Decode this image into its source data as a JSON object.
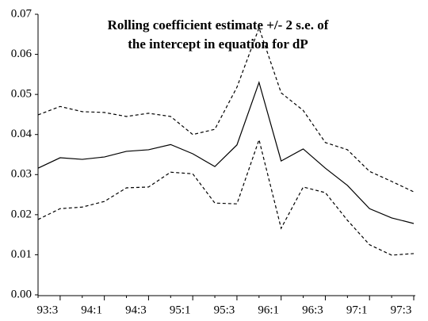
{
  "chart_data": {
    "type": "line",
    "title": [
      "Rolling coefficient estimate +/- 2 s.e. of",
      "the intercept in equation for dP"
    ],
    "categories": [
      null,
      "93:3",
      null,
      "94:1",
      null,
      "94:3",
      null,
      "95:1",
      null,
      "95:3",
      null,
      "96:1",
      null,
      "96:3",
      null,
      "97:1",
      null,
      "97:3"
    ],
    "series": [
      {
        "color": "#000000",
        "dash": "solid",
        "values": [
          0.0316,
          0.0342,
          0.0338,
          0.0344,
          0.0358,
          0.0362,
          0.0375,
          0.0352,
          0.032,
          0.0374,
          0.053,
          0.0334,
          0.0364,
          0.0316,
          0.0273,
          0.0215,
          0.0192,
          0.0178
        ]
      },
      {
        "color": "#000000",
        "dash": "dashed",
        "values": [
          0.0449,
          0.047,
          0.0457,
          0.0455,
          0.0445,
          0.0453,
          0.0445,
          0.04,
          0.0413,
          0.0518,
          0.0666,
          0.0504,
          0.046,
          0.038,
          0.0362,
          0.0308,
          0.0283,
          0.0257
        ]
      },
      {
        "color": "#000000",
        "dash": "dashed",
        "values": [
          0.0188,
          0.0215,
          0.0219,
          0.0233,
          0.0267,
          0.0269,
          0.0306,
          0.0302,
          0.0229,
          0.0227,
          0.0387,
          0.0166,
          0.0269,
          0.0255,
          0.0186,
          0.0125,
          0.0099,
          0.0103
        ]
      }
    ],
    "ylim": [
      0,
      0.07
    ],
    "yticks": [
      {
        "value": 0,
        "label": "0.00"
      },
      {
        "value": 0.01,
        "label": "0.01"
      },
      {
        "value": 0.02,
        "label": "0.02"
      },
      {
        "value": 0.03,
        "label": "0.03"
      },
      {
        "value": 0.04,
        "label": "0.04"
      },
      {
        "value": 0.05,
        "label": "0.05"
      },
      {
        "value": 0.06,
        "label": "0.06"
      },
      {
        "value": 0.07,
        "label": "0.07"
      }
    ],
    "grid": false
  }
}
